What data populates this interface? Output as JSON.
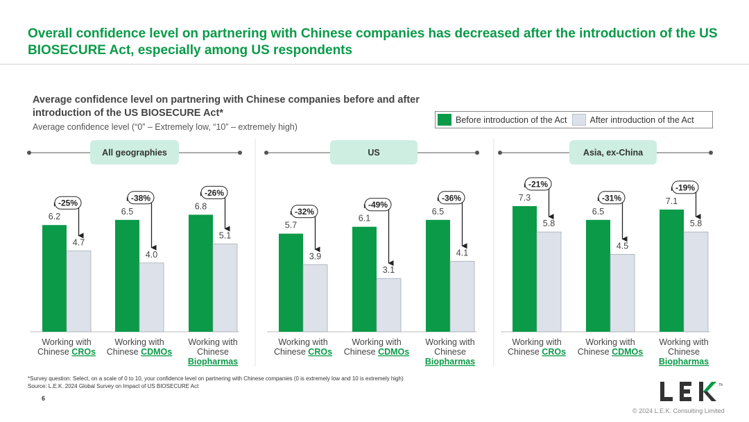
{
  "title": "Overall confidence level on partnering with Chinese companies has decreased after the introduction of the US BIOSECURE Act, especially among US respondents",
  "subtitle": "Average confidence level on partnering with Chinese companies before and after introduction of the US BIOSECURE Act*",
  "scale_note": "Average confidence level (“0” – Extremely low, “10” – extremely high)",
  "legend": {
    "before": "Before introduction of the Act",
    "after": "After introduction of the Act"
  },
  "colors": {
    "before": "#0a9a48",
    "after": "#dde2ea",
    "header_pill": "#cdeee0",
    "accent": "#0a9a48"
  },
  "chart_data": [
    {
      "type": "bar",
      "title": "All geographies",
      "categories": [
        {
          "line1": "Working with",
          "prefix": "Chinese ",
          "highlight": "CROs"
        },
        {
          "line1": "Working with",
          "prefix": "Chinese ",
          "highlight": "CDMOs"
        },
        {
          "line1": "Working with",
          "line2": "Chinese",
          "highlight": "Biopharmas"
        }
      ],
      "series": [
        {
          "name": "Before introduction of the Act",
          "values": [
            6.2,
            6.5,
            6.8
          ]
        },
        {
          "name": "After introduction of the Act",
          "values": [
            4.7,
            4.0,
            5.1
          ]
        }
      ],
      "changes": [
        "-25%",
        "-38%",
        "-26%"
      ],
      "ylim": [
        0,
        10
      ]
    },
    {
      "type": "bar",
      "title": "US",
      "categories": [
        {
          "line1": "Working with",
          "prefix": "Chinese ",
          "highlight": "CROs"
        },
        {
          "line1": "Working with",
          "prefix": "Chinese ",
          "highlight": "CDMOs"
        },
        {
          "line1": "Working with",
          "line2": "Chinese",
          "highlight": "Biopharmas"
        }
      ],
      "series": [
        {
          "name": "Before introduction of the Act",
          "values": [
            5.7,
            6.1,
            6.5
          ]
        },
        {
          "name": "After introduction of the Act",
          "values": [
            3.9,
            3.1,
            4.1
          ]
        }
      ],
      "changes": [
        "-32%",
        "-49%",
        "-36%"
      ],
      "ylim": [
        0,
        10
      ]
    },
    {
      "type": "bar",
      "title": "Asia, ex-China",
      "categories": [
        {
          "line1": "Working with",
          "prefix": "Chinese ",
          "highlight": "CROs"
        },
        {
          "line1": "Working with",
          "prefix": "Chinese ",
          "highlight": "CDMOs"
        },
        {
          "line1": "Working with",
          "line2": "Chinese",
          "highlight": "Biopharmas"
        }
      ],
      "series": [
        {
          "name": "Before introduction of the Act",
          "values": [
            7.3,
            6.5,
            7.1
          ]
        },
        {
          "name": "After introduction of the Act",
          "values": [
            5.8,
            4.5,
            5.8
          ]
        }
      ],
      "changes": [
        "-21%",
        "-31%",
        "-19%"
      ],
      "ylim": [
        0,
        10
      ]
    }
  ],
  "footnote": {
    "survey": "*Survey question: Select, on a scale of 0 to 10, your confidence level on partnering with Chinese companies (0 is extremely low and 10 is extremely high)",
    "source": "Source: L.E.K. 2024 Global Survey on Impact of US BIOSECURE Act"
  },
  "page_number": "6",
  "logo": {
    "text": "LEK",
    "tm": "TM",
    "icon": "lek-logo-icon"
  },
  "copyright": "© 2024 L.E.K. Consulting Limited"
}
